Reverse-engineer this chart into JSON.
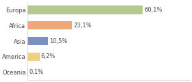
{
  "categories": [
    "Europa",
    "Africa",
    "Asia",
    "America",
    "Oceania"
  ],
  "values": [
    60.1,
    23.1,
    10.5,
    6.2,
    0.1
  ],
  "labels": [
    "60,1%",
    "23,1%",
    "10,5%",
    "6,2%",
    "0,1%"
  ],
  "bar_colors": [
    "#b5c98e",
    "#f0a878",
    "#7b8fc0",
    "#f0d080",
    "#f5b8a8"
  ],
  "background_color": "#ffffff",
  "label_fontsize": 6.0,
  "tick_fontsize": 6.0,
  "bar_height": 0.55,
  "xlim": [
    0,
    85
  ],
  "figsize": [
    2.8,
    1.2
  ],
  "dpi": 100
}
